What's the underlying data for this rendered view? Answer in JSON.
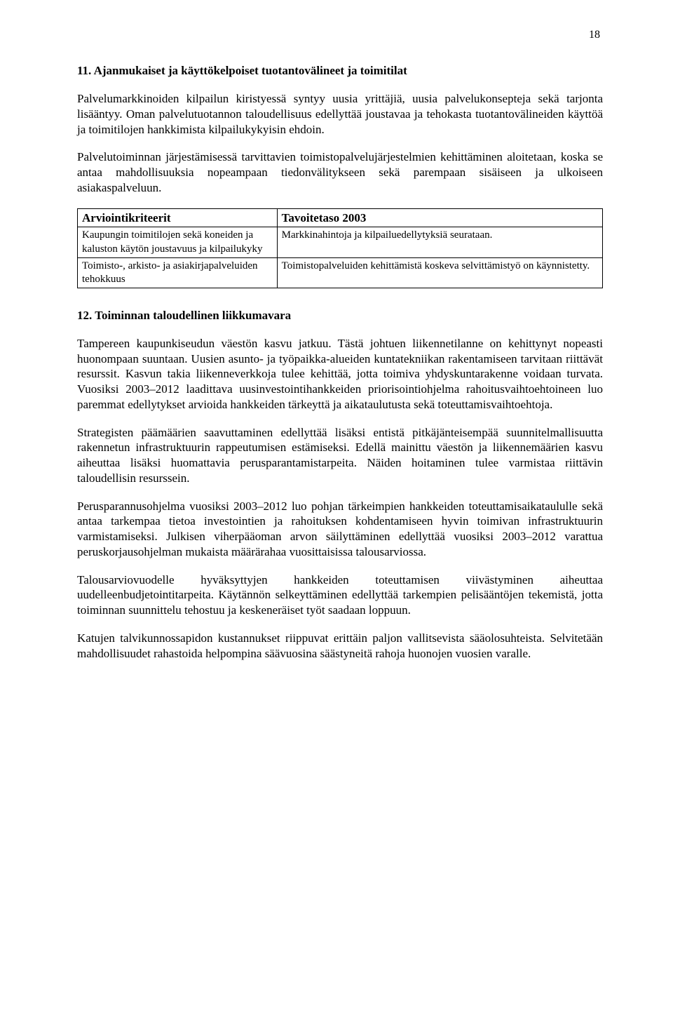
{
  "page_number": "18",
  "section11": {
    "heading": "11.  Ajanmukaiset ja käyttökelpoiset tuotantovälineet ja toimitilat",
    "p1": "Palvelumarkkinoiden kilpailun kiristyessä syntyy uusia yrittäjiä, uusia palvelukonsepteja sekä tarjonta lisääntyy. Oman palvelutuotannon taloudellisuus edellyttää joustavaa ja tehokasta tuotantovälineiden käyttöä ja toimitilojen hankkimista kilpailukykyisin ehdoin.",
    "p2": "Palvelutoiminnan järjestämisessä tarvittavien toimistopalvelujärjestelmien kehittäminen aloitetaan, koska se antaa mahdollisuuksia nopeampaan tiedonvälitykseen sekä parempaan sisäiseen ja ulkoiseen asiakaspalveluun."
  },
  "table": {
    "header_left": "Arviointikriteerit",
    "header_right": "Tavoitetaso 2003",
    "rows": [
      {
        "left": "Kaupungin toimitilojen sekä koneiden ja kaluston käytön joustavuus ja kilpailukyky",
        "right": "Markkinahintoja ja kilpailuedellytyksiä seurataan."
      },
      {
        "left": "Toimisto-, arkisto- ja asiakirjapalveluiden tehokkuus",
        "right": "Toimistopalveluiden kehittämistä koskeva selvittämistyö on käynnistetty."
      }
    ]
  },
  "section12": {
    "heading": "12.  Toiminnan taloudellinen liikkumavara",
    "p1": "Tampereen kaupunkiseudun väestön kasvu jatkuu. Tästä johtuen liikennetilanne on kehittynyt nopeasti huonompaan suuntaan. Uusien asunto- ja työpaikka-alueiden kuntatekniikan rakentamiseen tarvitaan riittävät resurssit. Kasvun takia liikenneverkkoja tulee kehittää, jotta toimiva yhdyskuntarakenne voidaan turvata. Vuosiksi 2003–2012 laadittava uusinvestointihankkeiden priorisointiohjelma rahoitusvaihtoehtoineen luo paremmat edellytykset arvioida hankkeiden tärkeyttä ja aikataulutusta sekä toteuttamisvaihtoehtoja.",
    "p2": "Strategisten päämäärien saavuttaminen edellyttää lisäksi entistä pitkäjänteisempää suunnitelmallisuutta rakennetun infrastruktuurin rappeutumisen estämiseksi. Edellä mainittu väestön ja liikennemäärien kasvu aiheuttaa lisäksi huomattavia perusparantamistarpeita. Näiden hoitaminen tulee varmistaa riittävin taloudellisin resurssein.",
    "p3": "Perusparannusohjelma vuosiksi 2003–2012 luo pohjan tärkeimpien hankkeiden toteuttamisaikataululle sekä antaa tarkempaa tietoa investointien ja rahoituksen kohdentamiseen hyvin toimivan infrastruktuurin varmistamiseksi. Julkisen viherpääoman arvon säilyttäminen edellyttää vuosiksi 2003–2012 varattua peruskorjausohjelman mukaista määrärahaa vuosittaisissa talousarviossa.",
    "p4": "Talousarviovuodelle hyväksyttyjen hankkeiden toteuttamisen viivästyminen aiheuttaa uudelleenbudjetointitarpeita. Käytännön selkeyttäminen edellyttää tarkempien pelisääntöjen tekemistä, jotta toiminnan suunnittelu tehostuu ja keskeneräiset työt saadaan loppuun.",
    "p5": "Katujen talvikunnossapidon kustannukset riippuvat erittäin paljon vallitsevista sääolosuhteista. Selvitetään mahdollisuudet rahastoida helpompina säävuosina säästyneitä rahoja huonojen vuosien varalle."
  }
}
